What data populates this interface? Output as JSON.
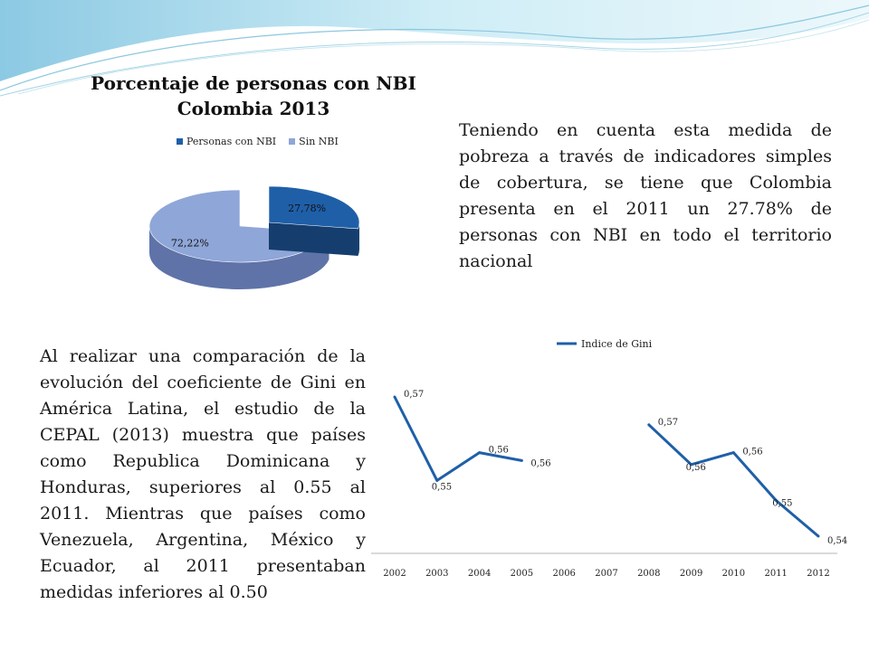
{
  "colors": {
    "nbi": "#1f5fa8",
    "nbi_dark": "#153e6e",
    "sin_nbi": "#8fa6d8",
    "sin_nbi_dark": "#5f73a8",
    "gini_line": "#1f5fa8",
    "deco": "#9fd6ea"
  },
  "pie": {
    "title_line1": "Porcentaje de personas con NBI",
    "title_line2": "Colombia 2013"
  },
  "paragraphs": {
    "intro": "Teniendo en cuenta esta medida de pobreza a través de indicadores simples de cobertura, se tiene que Colombia presenta en el 2011 un 27.78% de personas con NBI en todo el territorio nacional",
    "gini": "Al realizar una comparación de la evolución del coeficiente de Gini en América Latina, el estudio de la CEPAL (2013) muestra que países como Republica Dominicana y Honduras, superiores al 0.55 al 2011. Mientras que países como Venezuela, Argentina, México y Ecuador, al 2011 presentaban medidas inferiores al 0.50"
  },
  "chart_data": [
    {
      "type": "pie",
      "title": "Porcentaje de personas con NBI Colombia 2013",
      "legend_position": "top",
      "labels": [
        "Personas con NBI",
        "Sin NBI"
      ],
      "values": [
        27.78,
        72.22
      ],
      "data_labels": [
        "27,78%",
        "72,22%"
      ]
    },
    {
      "type": "line",
      "title": "",
      "legend_position": "top",
      "series": [
        {
          "name": "Indice de Gini",
          "values": [
            0.57,
            0.55,
            0.56,
            0.56,
            null,
            null,
            0.57,
            0.56,
            0.56,
            0.55,
            0.54
          ],
          "data_labels": [
            "0,57",
            "0,55",
            "0,56",
            "0,56",
            "",
            "",
            "0,57",
            "0,56",
            "0,56",
            "0,55",
            "0,54"
          ]
        }
      ],
      "categories": [
        "2002",
        "2003",
        "2004",
        "2005",
        "2006",
        "2007",
        "2008",
        "2009",
        "2010",
        "2011",
        "2012"
      ],
      "true_values": [
        0.574,
        0.553,
        0.56,
        0.558,
        null,
        null,
        0.567,
        0.557,
        0.56,
        0.548,
        0.539
      ],
      "ylim": [
        0.5,
        0.6
      ],
      "grid": false
    }
  ]
}
